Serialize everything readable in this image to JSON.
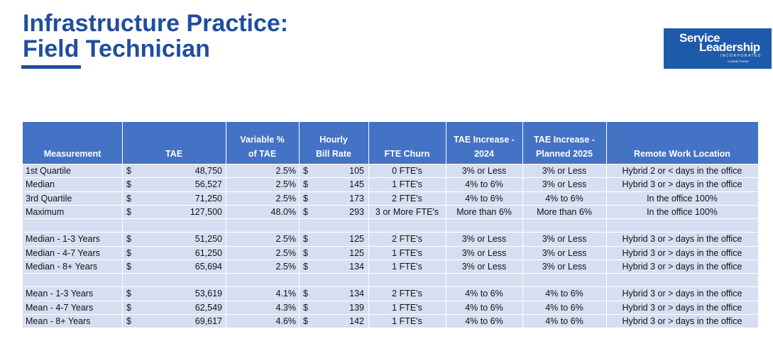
{
  "header": {
    "title": [
      "Infrastructure Practice:",
      "Field Technician"
    ],
    "logo": {
      "line1": "Service",
      "line2": "Leadership",
      "line3": "INCORPORATED",
      "line4": "CONNECTWISE"
    }
  },
  "table": {
    "columns": [
      [
        "Measurement"
      ],
      [
        "TAE"
      ],
      [
        "Variable %",
        "of TAE"
      ],
      [
        "Hourly",
        "Bill Rate"
      ],
      [
        "FTE Churn"
      ],
      [
        "TAE Increase -",
        "2024"
      ],
      [
        "TAE Increase -",
        "Planned 2025"
      ],
      [
        "Remote Work Location"
      ]
    ],
    "rows": [
      [
        "1st Quartile",
        "$",
        "48,750",
        "2.5%",
        "$",
        "105",
        "0 FTE's",
        "3% or Less",
        "3% or Less",
        "Hybrid 2 or < days in the office"
      ],
      [
        "Median",
        "$",
        "56,527",
        "2.5%",
        "$",
        "145",
        "1 FTE's",
        "4% to 6%",
        "3% or Less",
        "Hybrid 3 or > days in the office"
      ],
      [
        "3rd Quartile",
        "$",
        "71,250",
        "2.5%",
        "$",
        "173",
        "2 FTE's",
        "4% to 6%",
        "4% to 6%",
        "In the office 100%"
      ],
      [
        "Maximum",
        "$",
        "127,500",
        "48.0%",
        "$",
        "293",
        "3 or More FTE's",
        "More than 6%",
        "More than 6%",
        "In the office 100%"
      ],
      null,
      [
        "Median - 1-3 Years",
        "$",
        "51,250",
        "2.5%",
        "$",
        "125",
        "2 FTE's",
        "3% or Less",
        "3% or Less",
        "Hybrid 3 or > days in the office"
      ],
      [
        "Median - 4-7 Years",
        "$",
        "61,250",
        "2.5%",
        "$",
        "125",
        "1 FTE's",
        "3% or Less",
        "3% or Less",
        "Hybrid 3 or > days in the office"
      ],
      [
        "Median - 8+ Years",
        "$",
        "65,694",
        "2.5%",
        "$",
        "134",
        "1 FTE's",
        "3% or Less",
        "3% or Less",
        "Hybrid 3 or > days in the office"
      ],
      null,
      [
        "Mean - 1-3 Years",
        "$",
        "53,619",
        "4.1%",
        "$",
        "134",
        "2 FTE's",
        "4% to 6%",
        "4% to 6%",
        "Hybrid 3 or > days in the office"
      ],
      [
        "Mean - 4-7 Years",
        "$",
        "62,549",
        "4.3%",
        "$",
        "139",
        "1 FTE's",
        "4% to 6%",
        "4% to 6%",
        "Hybrid 3 or > days in the office"
      ],
      [
        "Mean - 8+ Years",
        "$",
        "69,617",
        "4.6%",
        "$",
        "142",
        "1 FTE's",
        "4% to 6%",
        "4% to 6%",
        "Hybrid 3 or > days in the office"
      ]
    ]
  }
}
